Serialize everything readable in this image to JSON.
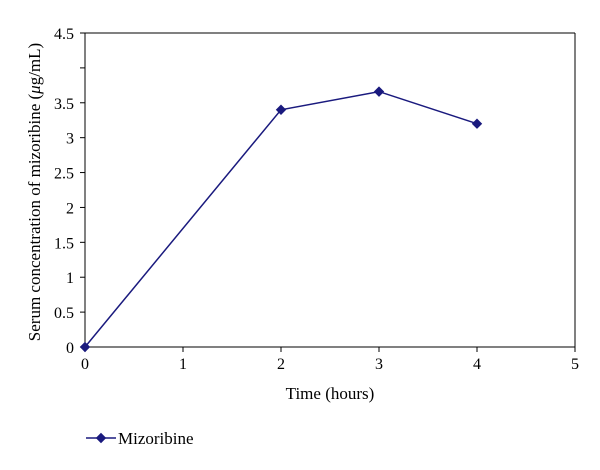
{
  "chart_data": {
    "type": "line",
    "title": "",
    "xlabel": "Time (hours)",
    "ylabel_parts": [
      "Serum concentration of mizoribine (",
      "μ",
      "g/mL)"
    ],
    "xlim": [
      0,
      5
    ],
    "ylim": [
      0,
      4.5
    ],
    "x_ticks": [
      "0",
      "1",
      "2",
      "3",
      "4",
      "5"
    ],
    "y_ticks": [
      "0",
      "0.5",
      "1",
      "1.5",
      "2",
      "2.5",
      "3",
      "3.5",
      "4.5"
    ],
    "y_tick_values": [
      0,
      0.5,
      1,
      1.5,
      2,
      2.5,
      3,
      3.5,
      4.5
    ],
    "grid": false,
    "legend_position": "bottom-left",
    "series": [
      {
        "name": "Mizoribine",
        "color": "#1a1a7e",
        "marker": "diamond",
        "x": [
          0,
          2,
          3,
          4
        ],
        "y": [
          0,
          3.4,
          3.66,
          3.2
        ]
      }
    ]
  }
}
